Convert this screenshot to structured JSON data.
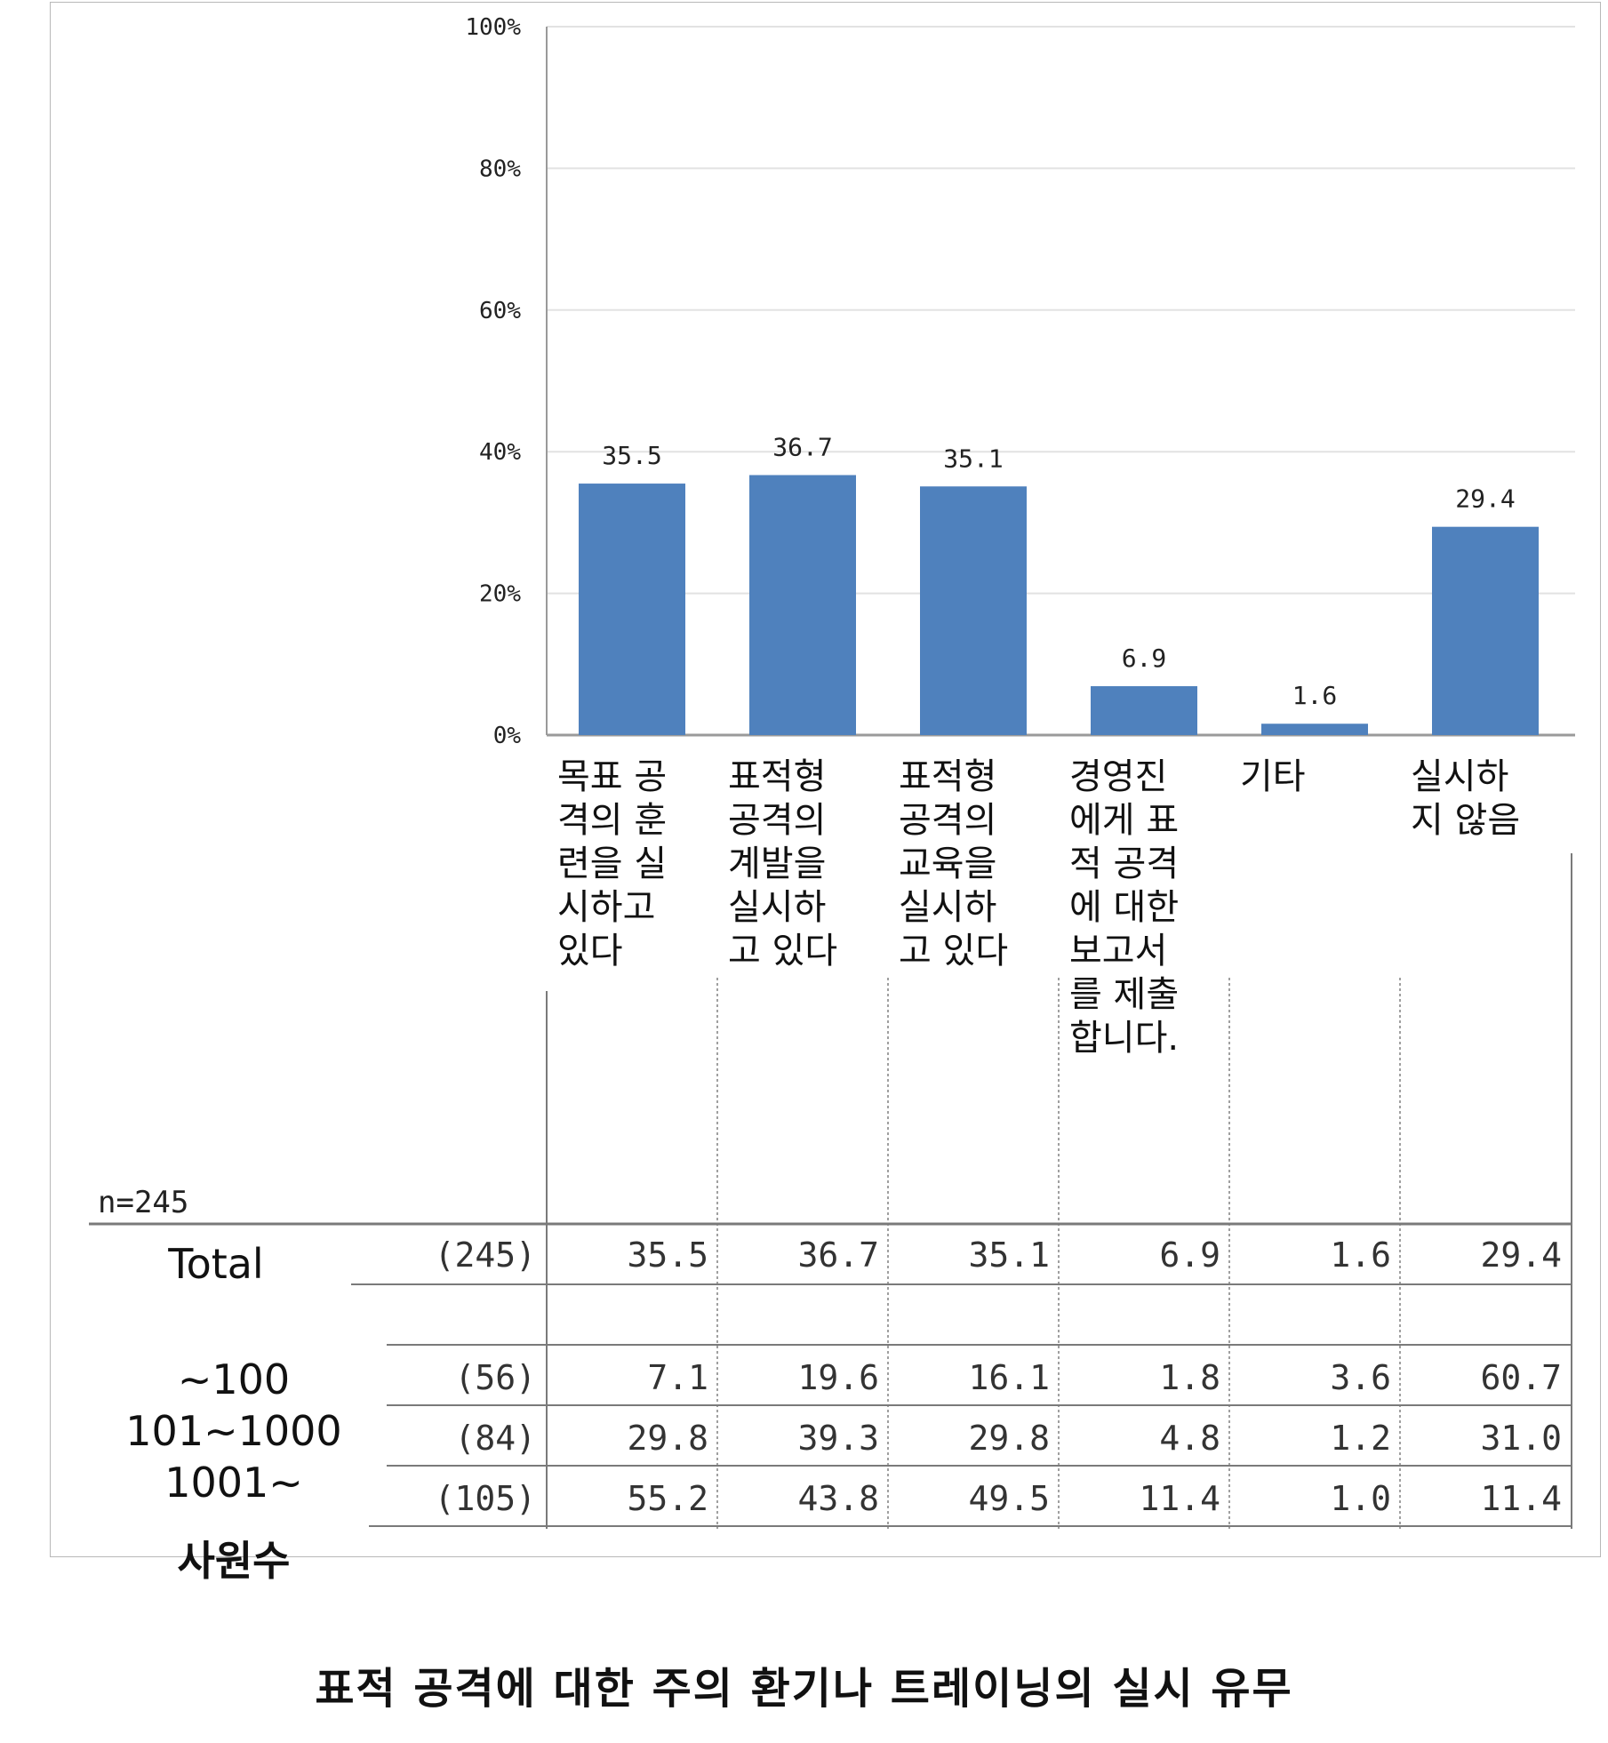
{
  "caption": "표적 공격에 대한 주의 환기나 트레이닝의 실시 유무",
  "chart_data": {
    "type": "bar",
    "title": "",
    "ylim": [
      0,
      100
    ],
    "y_ticks": [
      "0%",
      "20%",
      "40%",
      "60%",
      "80%",
      "100%"
    ],
    "grid": true,
    "categories": [
      [
        "목표 공",
        "격의 훈",
        "련을 실",
        "시하고",
        "있다"
      ],
      [
        "표적형",
        "공격의",
        "계발을",
        "실시하",
        "고 있다"
      ],
      [
        "표적형",
        "공격의",
        "교육을",
        "실시하",
        "고 있다"
      ],
      [
        "경영진",
        "에게 표",
        "적 공격",
        "에 대한",
        "보고서",
        "를 제출",
        "합니다."
      ],
      [
        "기타"
      ],
      [
        "실시하",
        "지 않음"
      ]
    ],
    "values": [
      35.5,
      36.7,
      35.1,
      6.9,
      1.6,
      29.4
    ],
    "data_labels": [
      "35.5",
      "36.7",
      "35.1",
      "6.9",
      "1.6",
      "29.4"
    ],
    "bar_color": "#4f81bd"
  },
  "table": {
    "n_label": "n=245",
    "total": {
      "label": "Total",
      "count": "(245)",
      "cells": [
        "35.5",
        "36.7",
        "35.1",
        "6.9",
        "1.6",
        "29.4"
      ]
    },
    "group_label": "사원수",
    "rows": [
      {
        "label": "~100",
        "count": "(56)",
        "cells": [
          "7.1",
          "19.6",
          "16.1",
          "1.8",
          "3.6",
          "60.7"
        ]
      },
      {
        "label": "101~1000",
        "count": "(84)",
        "cells": [
          "29.8",
          "39.3",
          "29.8",
          "4.8",
          "1.2",
          "31.0"
        ]
      },
      {
        "label": "1001~",
        "count": "(105)",
        "cells": [
          "55.2",
          "43.8",
          "49.5",
          "11.4",
          "1.0",
          "11.4"
        ]
      }
    ]
  }
}
